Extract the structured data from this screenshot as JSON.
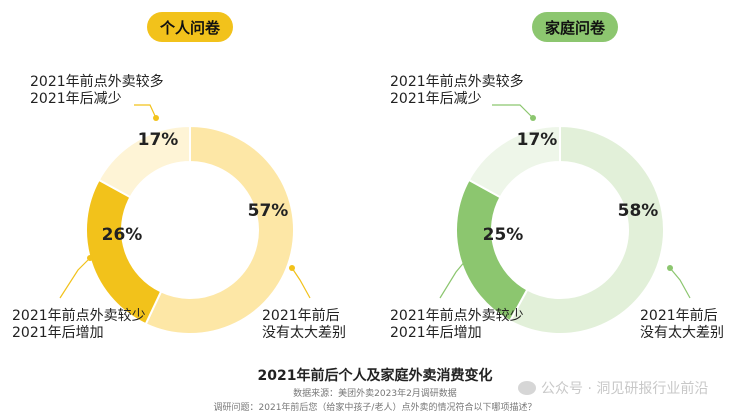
{
  "chart_data": [
    {
      "type": "pie",
      "title": "个人问卷",
      "color": "#f2c21b",
      "slices": [
        {
          "label": "2021年前后\n没有太大差别",
          "value": 57,
          "text": "57%",
          "color": "#fde7a6"
        },
        {
          "label": "2021年前点外卖较少\n2021年后增加",
          "value": 26,
          "text": "26%",
          "color": "#f2c21b"
        },
        {
          "label": "2021年前点外卖较多\n2021年后减少",
          "value": 17,
          "text": "17%",
          "color": "#fef4d6"
        }
      ]
    },
    {
      "type": "pie",
      "title": "家庭问卷",
      "color": "#8cc66f",
      "slices": [
        {
          "label": "2021年前后\n没有太大差别",
          "value": 58,
          "text": "58%",
          "color": "#e2f0d9"
        },
        {
          "label": "2021年前点外卖较少\n2021年后增加",
          "value": 25,
          "text": "25%",
          "color": "#8cc66f"
        },
        {
          "label": "2021年前点外卖较多\n2021年后减少",
          "value": 17,
          "text": "17%",
          "color": "#eef6e9"
        }
      ]
    }
  ],
  "footer": {
    "title": "2021年前后个人及家庭外卖消费变化",
    "source": "数据来源：美团外卖2023年2月调研数据",
    "question": "调研问题：2021年前后您（给家中孩子/老人）点外卖的情况符合以下哪项描述？"
  },
  "watermark": "公众号 · 洞见研报行业前沿"
}
